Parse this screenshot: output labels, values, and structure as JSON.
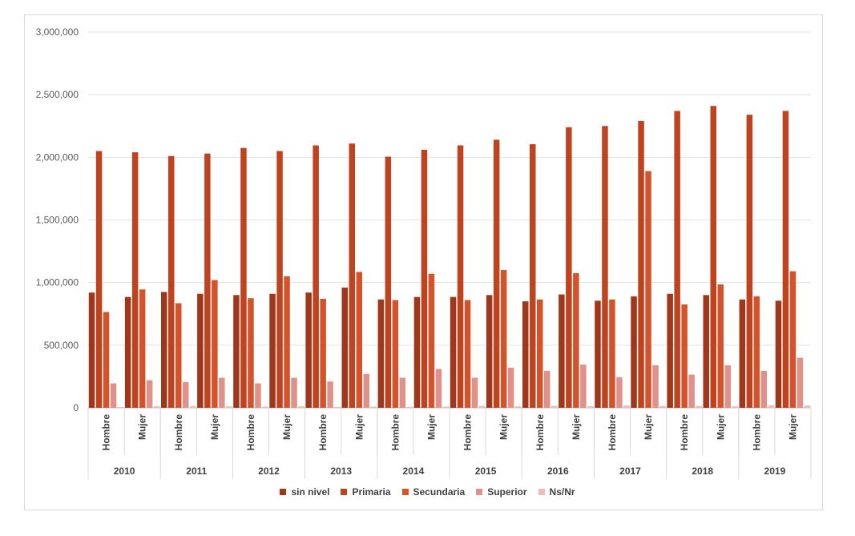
{
  "chart_data": {
    "type": "bar",
    "title": "",
    "xlabel": "",
    "ylabel": "",
    "ylim": [
      0,
      3000000
    ],
    "y_ticks": [
      "0",
      "500,000",
      "1,000,000",
      "1,500,000",
      "2,000,000",
      "2,500,000",
      "3,000,000"
    ],
    "y_tick_values": [
      0,
      500000,
      1000000,
      1500000,
      2000000,
      2500000,
      3000000
    ],
    "grid": true,
    "legend_position": "bottom",
    "groups": [
      "2010",
      "2011",
      "2012",
      "2013",
      "2014",
      "2015",
      "2016",
      "2017",
      "2018",
      "2019"
    ],
    "subcategories": [
      "Hombre",
      "Mujer"
    ],
    "categories": [
      "2010 Hombre",
      "2010 Mujer",
      "2011 Hombre",
      "2011 Mujer",
      "2012 Hombre",
      "2012 Mujer",
      "2013 Hombre",
      "2013 Mujer",
      "2014 Hombre",
      "2014 Mujer",
      "2015 Hombre",
      "2015 Mujer",
      "2016 Hombre",
      "2016 Mujer",
      "2017 Hombre",
      "2017 Mujer",
      "2018 Hombre",
      "2018 Mujer",
      "2019 Hombre",
      "2019 Mujer"
    ],
    "series": [
      {
        "name": "sin nivel",
        "color": "#a0361a",
        "values": [
          920000,
          885000,
          925000,
          910000,
          900000,
          910000,
          920000,
          960000,
          865000,
          885000,
          885000,
          900000,
          850000,
          905000,
          855000,
          890000,
          910000,
          900000,
          865000,
          855000
        ]
      },
      {
        "name": "Primaria",
        "color": "#c0431f",
        "values": [
          2050000,
          2040000,
          2010000,
          2030000,
          2075000,
          2050000,
          2095000,
          2110000,
          2005000,
          2060000,
          2095000,
          2140000,
          2105000,
          2240000,
          2250000,
          2290000,
          2370000,
          2410000,
          2340000,
          2370000
        ]
      },
      {
        "name": "Secundaria",
        "color": "#d4532b",
        "values": [
          765000,
          945000,
          835000,
          1020000,
          875000,
          1050000,
          870000,
          1085000,
          860000,
          1070000,
          860000,
          1100000,
          865000,
          1075000,
          865000,
          1890000,
          825000,
          985000,
          890000,
          1090000
        ]
      },
      {
        "name": "Superior",
        "color": "#e0928a",
        "values": [
          195000,
          220000,
          205000,
          240000,
          195000,
          240000,
          210000,
          270000,
          240000,
          310000,
          240000,
          320000,
          295000,
          345000,
          245000,
          340000,
          265000,
          340000,
          295000,
          400000
        ]
      },
      {
        "name": "Ns/Nr",
        "color": "#ecbcb6",
        "values": [
          8000,
          12000,
          15000,
          12000,
          10000,
          12000,
          8000,
          10000,
          8000,
          10000,
          15000,
          12000,
          15000,
          12000,
          18000,
          15000,
          15000,
          12000,
          20000,
          18000
        ]
      }
    ]
  }
}
